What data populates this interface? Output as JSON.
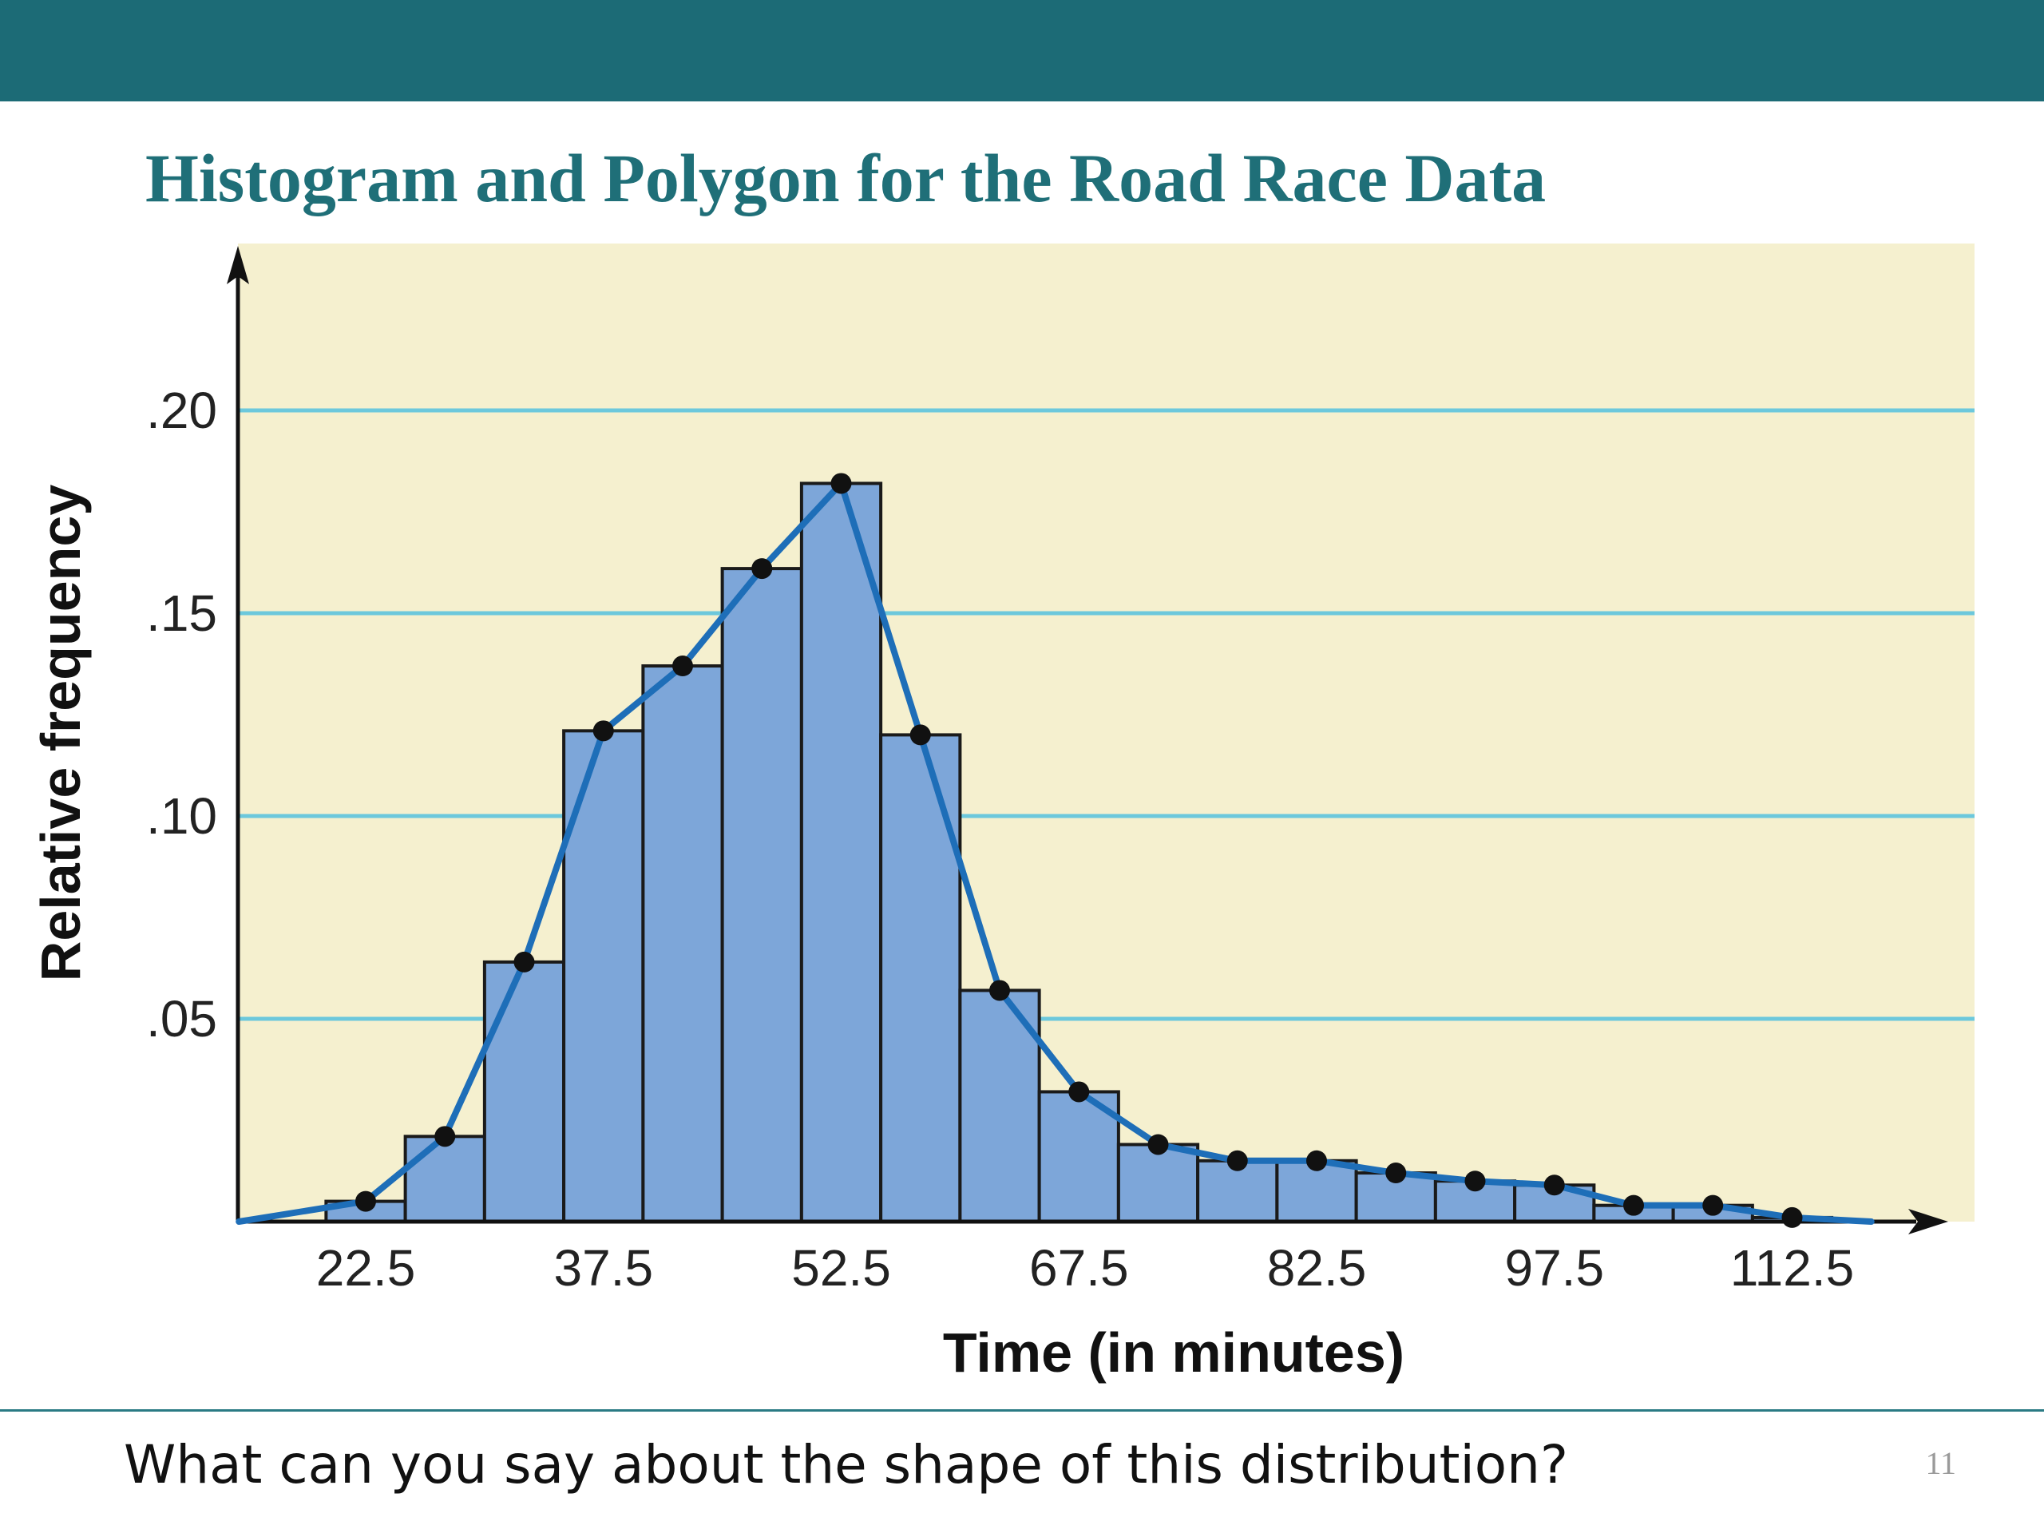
{
  "slide": {
    "title": "Histogram and Polygon for the Road Race Data",
    "question": "What can you say about the shape of this distribution?",
    "page_number": "11",
    "banner_color": "#1c6b76"
  },
  "chart_data": {
    "type": "bar",
    "overlay": "frequency-polygon",
    "title": "Histogram and Polygon for the Road Race Data",
    "xlabel": "Time (in minutes)",
    "ylabel": "Relative frequency",
    "x_ticks": [
      22.5,
      37.5,
      52.5,
      67.5,
      82.5,
      97.5,
      112.5
    ],
    "x_tick_labels": [
      "22.5",
      "37.5",
      "52.5",
      "67.5",
      "82.5",
      "97.5",
      "112.5"
    ],
    "y_ticks": [
      0.05,
      0.1,
      0.15,
      0.2
    ],
    "y_tick_labels": [
      ".05",
      ".10",
      ".15",
      ".20"
    ],
    "xlim": [
      14.5,
      124.5
    ],
    "ylim": [
      0,
      0.24
    ],
    "grid": "horizontal",
    "bin_width": 5,
    "bin_midpoints": [
      22.5,
      27.5,
      32.5,
      37.5,
      42.5,
      47.5,
      52.5,
      57.5,
      62.5,
      67.5,
      72.5,
      77.5,
      82.5,
      87.5,
      92.5,
      97.5,
      102.5,
      107.5,
      112.5
    ],
    "values": [
      0.005,
      0.021,
      0.064,
      0.121,
      0.137,
      0.161,
      0.182,
      0.12,
      0.057,
      0.032,
      0.019,
      0.015,
      0.015,
      0.012,
      0.01,
      0.009,
      0.004,
      0.004,
      0.001
    ],
    "polygon_x": [
      14.5,
      22.5,
      27.5,
      32.5,
      37.5,
      42.5,
      47.5,
      52.5,
      57.5,
      62.5,
      67.5,
      72.5,
      77.5,
      82.5,
      87.5,
      92.5,
      97.5,
      102.5,
      107.5,
      112.5,
      117.5
    ],
    "polygon_y": [
      0,
      0.005,
      0.021,
      0.064,
      0.121,
      0.137,
      0.161,
      0.182,
      0.12,
      0.057,
      0.032,
      0.019,
      0.015,
      0.015,
      0.012,
      0.01,
      0.009,
      0.004,
      0.004,
      0.001,
      0
    ],
    "colors": {
      "plot_background": "#f5f0cf",
      "bar_fill": "#7da6d9",
      "bar_stroke": "#1a1a1a",
      "polygon_line": "#1e6eb8",
      "polygon_marker": "#111111",
      "gridline": "#6cc8dc"
    }
  }
}
